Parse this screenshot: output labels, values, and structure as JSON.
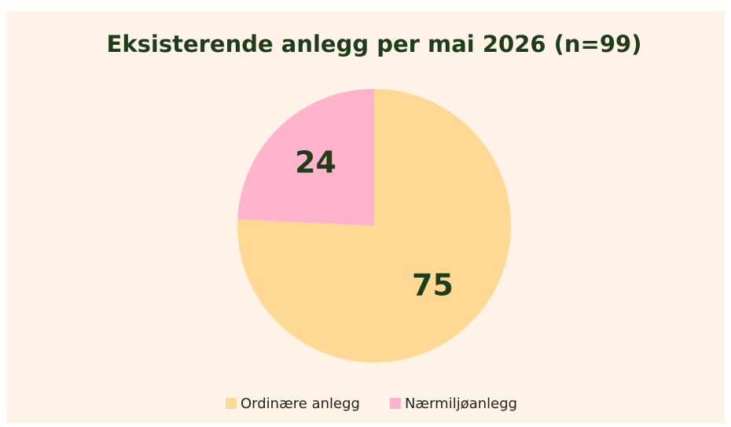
{
  "chart_data": {
    "type": "pie",
    "title": "Eksisterende anlegg per mai 2026 (n=99)",
    "categories": [
      "Ordinære anlegg",
      "Nærmiljøanlegg"
    ],
    "values": [
      75,
      24
    ],
    "colors": [
      "#ffd994",
      "#ffb3cc"
    ],
    "legend": "bottom"
  }
}
